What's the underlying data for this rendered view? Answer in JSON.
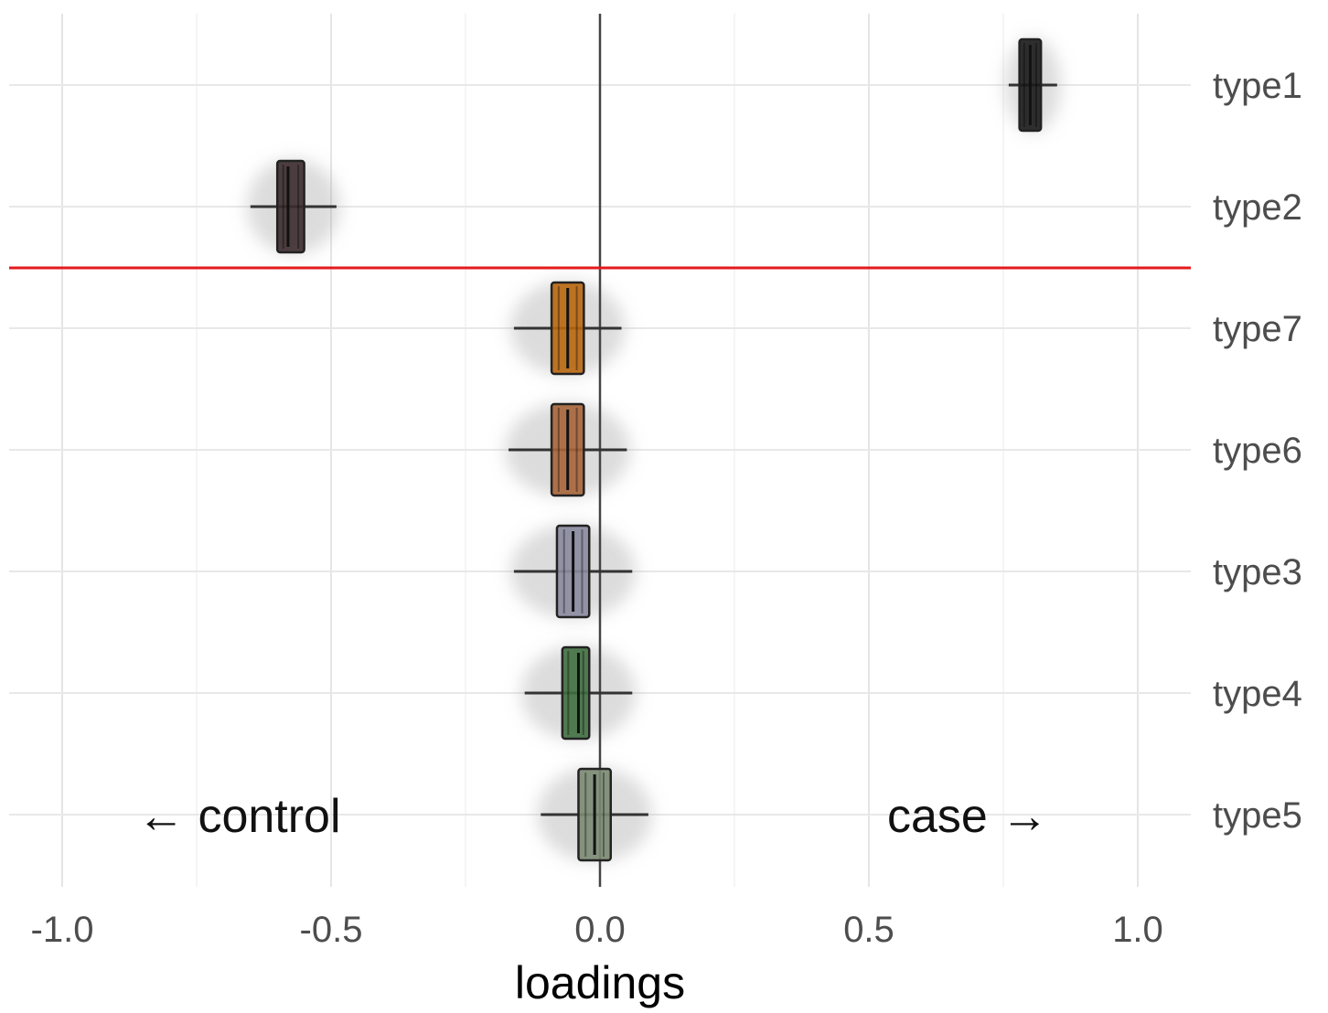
{
  "chart_data": {
    "type": "boxplot",
    "xlabel": "loadings",
    "ylabel": "",
    "xlim": [
      -1.0,
      1.1
    ],
    "x_ticks": [
      "-1.0",
      "-0.5",
      "0.0",
      "0.5",
      "1.0"
    ],
    "grid": true,
    "categories": [
      "type1",
      "type2",
      "type7",
      "type6",
      "type3",
      "type4",
      "type5"
    ],
    "reference_line": {
      "x": 0.0,
      "color": "#444444"
    },
    "separator": {
      "between": [
        "type2",
        "type7"
      ],
      "color": "#e41a1c"
    },
    "annotations": {
      "left": "← control",
      "right": "case →"
    },
    "boxes": [
      {
        "category": "type1",
        "q1": 0.78,
        "median": 0.8,
        "q3": 0.82,
        "whisker_low": 0.76,
        "whisker_high": 0.85,
        "color": "#1a1a1a"
      },
      {
        "category": "type2",
        "q1": -0.6,
        "median": -0.58,
        "q3": -0.55,
        "whisker_low": -0.65,
        "whisker_high": -0.49,
        "color": "#3b2a2e"
      },
      {
        "category": "type7",
        "q1": -0.09,
        "median": -0.06,
        "q3": -0.03,
        "whisker_low": -0.16,
        "whisker_high": 0.04,
        "color": "#b8660e"
      },
      {
        "category": "type6",
        "q1": -0.09,
        "median": -0.06,
        "q3": -0.03,
        "whisker_low": -0.17,
        "whisker_high": 0.05,
        "color": "#a66438"
      },
      {
        "category": "type3",
        "q1": -0.08,
        "median": -0.05,
        "q3": -0.02,
        "whisker_low": -0.16,
        "whisker_high": 0.06,
        "color": "#8a8a9e"
      },
      {
        "category": "type4",
        "q1": -0.07,
        "median": -0.04,
        "q3": -0.02,
        "whisker_low": -0.14,
        "whisker_high": 0.06,
        "color": "#3f6e3f"
      },
      {
        "category": "type5",
        "q1": -0.04,
        "median": -0.01,
        "q3": 0.02,
        "whisker_low": -0.11,
        "whisker_high": 0.09,
        "color": "#7a8a72"
      }
    ]
  }
}
